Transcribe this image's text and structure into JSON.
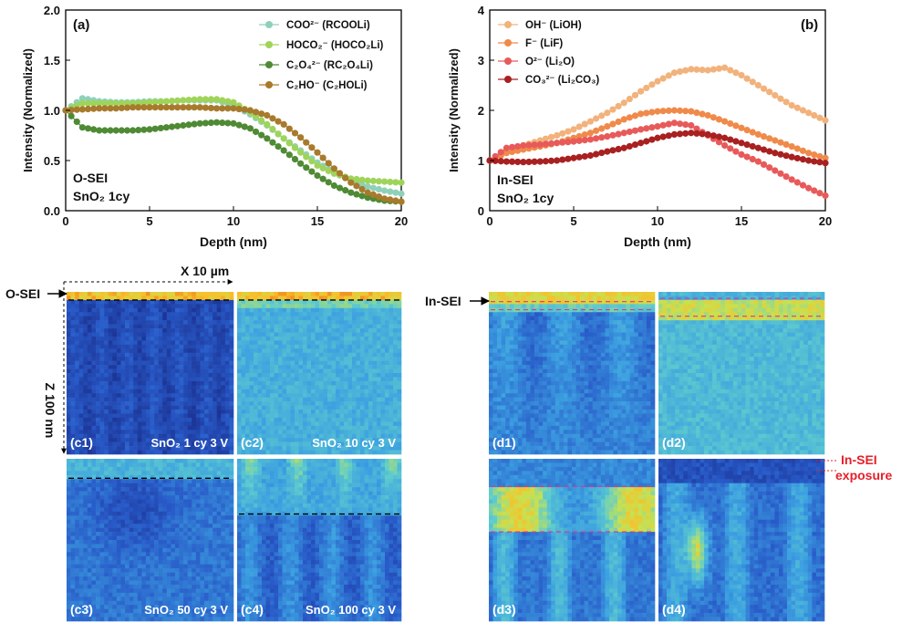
{
  "chart_data": [
    {
      "type": "scatter",
      "panel_label": "(a)",
      "xlabel": "Depth (nm)",
      "ylabel": "Intensity (Normalized)",
      "xlim": [
        0,
        20
      ],
      "ylim": [
        0,
        2.0
      ],
      "xticks": [
        "0",
        "5",
        "10",
        "15",
        "20"
      ],
      "yticks": [
        "0.0",
        "0.5",
        "1.0",
        "1.5",
        "2.0"
      ],
      "annotation": [
        "O-SEI",
        "SnO₂  1cy"
      ],
      "legend_position": "top-right",
      "series": [
        {
          "name": "COO²⁻ (RCOOLi)",
          "color": "#8fd1b8",
          "x": [
            0,
            1,
            2,
            3,
            4,
            5,
            6,
            7,
            8,
            9,
            10,
            11,
            12,
            13,
            14,
            15,
            16,
            17,
            18,
            19,
            20
          ],
          "y": [
            1.0,
            1.12,
            1.09,
            1.08,
            1.08,
            1.09,
            1.09,
            1.1,
            1.1,
            1.1,
            1.05,
            0.96,
            0.85,
            0.72,
            0.6,
            0.48,
            0.38,
            0.3,
            0.24,
            0.2,
            0.17
          ]
        },
        {
          "name": "HOCO₂⁻ (HOCO₂Li)",
          "color": "#9fd45a",
          "x": [
            0,
            1,
            2,
            3,
            4,
            5,
            6,
            7,
            8,
            9,
            10,
            11,
            12,
            13,
            14,
            15,
            16,
            17,
            18,
            19,
            20
          ],
          "y": [
            1.0,
            1.07,
            1.07,
            1.07,
            1.07,
            1.08,
            1.09,
            1.1,
            1.11,
            1.11,
            1.08,
            0.98,
            0.86,
            0.72,
            0.58,
            0.45,
            0.37,
            0.32,
            0.3,
            0.29,
            0.28
          ]
        },
        {
          "name": "C₂O₄²⁻ (RC₂O₄Li)",
          "color": "#4f8a34",
          "x": [
            0,
            1,
            2,
            3,
            4,
            5,
            6,
            7,
            8,
            9,
            10,
            11,
            12,
            13,
            14,
            15,
            16,
            17,
            18,
            19,
            20
          ],
          "y": [
            1.0,
            0.83,
            0.8,
            0.8,
            0.8,
            0.81,
            0.83,
            0.85,
            0.87,
            0.88,
            0.87,
            0.82,
            0.72,
            0.6,
            0.47,
            0.35,
            0.25,
            0.18,
            0.13,
            0.1,
            0.09
          ]
        },
        {
          "name": "C₂HO⁻ (C₂HOLi)",
          "color": "#a87a2c",
          "x": [
            0,
            1,
            2,
            3,
            4,
            5,
            6,
            7,
            8,
            9,
            10,
            11,
            12,
            13,
            14,
            15,
            16,
            17,
            18,
            19,
            20
          ],
          "y": [
            1.0,
            1.01,
            1.02,
            1.02,
            1.03,
            1.03,
            1.03,
            1.03,
            1.03,
            1.02,
            1.02,
            1.0,
            0.95,
            0.86,
            0.73,
            0.58,
            0.42,
            0.28,
            0.18,
            0.12,
            0.09
          ]
        }
      ]
    },
    {
      "type": "scatter",
      "panel_label": "(b)",
      "xlabel": "Depth (nm)",
      "ylabel": "Intensity (Normalized)",
      "xlim": [
        0,
        20
      ],
      "ylim": [
        0,
        4
      ],
      "xticks": [
        "0",
        "5",
        "10",
        "15",
        "20"
      ],
      "yticks": [
        "0",
        "1",
        "2",
        "3",
        "4"
      ],
      "annotation": [
        "In-SEI",
        "SnO₂  1cy"
      ],
      "legend_position": "top-left",
      "series": [
        {
          "name": "OH⁻ (LiOH)",
          "color": "#f2b27c",
          "x": [
            0,
            1,
            2,
            3,
            4,
            5,
            6,
            7,
            8,
            9,
            10,
            11,
            12,
            13,
            14,
            15,
            16,
            17,
            18,
            19,
            20
          ],
          "y": [
            1.0,
            1.2,
            1.3,
            1.4,
            1.5,
            1.62,
            1.78,
            1.95,
            2.15,
            2.38,
            2.58,
            2.75,
            2.82,
            2.8,
            2.85,
            2.7,
            2.5,
            2.3,
            2.1,
            1.95,
            1.8
          ]
        },
        {
          "name": "F⁻ (LiF)",
          "color": "#f08a4a",
          "x": [
            0,
            1,
            2,
            3,
            4,
            5,
            6,
            7,
            8,
            9,
            10,
            11,
            12,
            13,
            14,
            15,
            16,
            17,
            18,
            19,
            20
          ],
          "y": [
            1.0,
            1.15,
            1.22,
            1.28,
            1.35,
            1.45,
            1.55,
            1.68,
            1.82,
            1.93,
            1.98,
            2.0,
            1.98,
            1.9,
            1.78,
            1.65,
            1.52,
            1.4,
            1.28,
            1.15,
            1.05
          ]
        },
        {
          "name": "O²⁻ (Li₂O)",
          "color": "#e85a5a",
          "x": [
            0,
            1,
            2,
            3,
            4,
            5,
            6,
            7,
            8,
            9,
            10,
            11,
            12,
            13,
            14,
            15,
            16,
            17,
            18,
            19,
            20
          ],
          "y": [
            1.0,
            1.25,
            1.3,
            1.32,
            1.35,
            1.38,
            1.42,
            1.48,
            1.55,
            1.62,
            1.68,
            1.75,
            1.7,
            1.5,
            1.3,
            1.12,
            0.98,
            0.8,
            0.62,
            0.45,
            0.3
          ]
        },
        {
          "name": "CO₃²⁻ (Li₂CO₃)",
          "color": "#a82020",
          "x": [
            0,
            1,
            2,
            3,
            4,
            5,
            6,
            7,
            8,
            9,
            10,
            11,
            12,
            13,
            14,
            15,
            16,
            17,
            18,
            19,
            20
          ],
          "y": [
            1.0,
            0.98,
            0.97,
            0.98,
            1.0,
            1.05,
            1.1,
            1.18,
            1.25,
            1.35,
            1.45,
            1.52,
            1.55,
            1.52,
            1.45,
            1.35,
            1.25,
            1.15,
            1.07,
            1.0,
            0.95
          ]
        }
      ]
    }
  ],
  "maps": {
    "o_sei_label": "O-SEI",
    "in_sei_label": "In-SEI",
    "x_scale": "X 10 µm",
    "z_scale": "Z 100 nm",
    "exposure_label": "In-SEI",
    "exposure_label2": "exposure",
    "panels": [
      {
        "label": "(c1)",
        "caption": "SnO₂ 1 cy   3 V",
        "interface": 0.05
      },
      {
        "label": "(c2)",
        "caption": "SnO₂ 10 cy   3 V",
        "interface": 0.05
      },
      {
        "label": "(c3)",
        "caption": "SnO₂ 50 cy   3 V",
        "interface": 0.12
      },
      {
        "label": "(c4)",
        "caption": "SnO₂ 100 cy   3 V",
        "interface": 0.34
      },
      {
        "label": "(d1)",
        "caption": "",
        "band": [
          0.06,
          0.11
        ]
      },
      {
        "label": "(d2)",
        "caption": "",
        "band": [
          0.04,
          0.15
        ]
      },
      {
        "label": "(d3)",
        "caption": "",
        "band": [
          0.17,
          0.45
        ]
      },
      {
        "label": "(d4)",
        "caption": "",
        "band": null
      }
    ]
  }
}
